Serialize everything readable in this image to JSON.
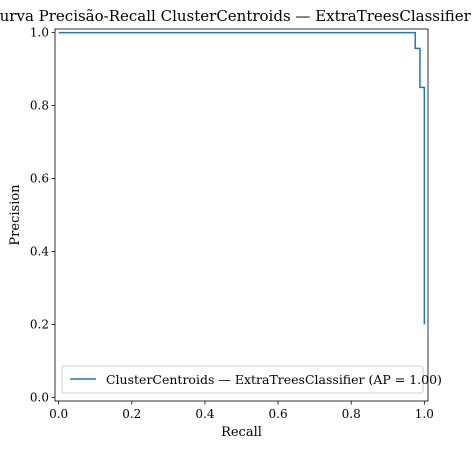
{
  "chart_data": {
    "type": "line",
    "title": "Curva Precisão-Recall ClusterCentroids — ExtraTreesClassifier",
    "xlabel": "Recall",
    "ylabel": "Precision",
    "xlim": [
      -0.01,
      1.01
    ],
    "ylim": [
      -0.01,
      1.01
    ],
    "xticks": [
      0.0,
      0.2,
      0.4,
      0.6,
      0.8,
      1.0
    ],
    "xtick_labels": [
      "0.0",
      "0.2",
      "0.4",
      "0.6",
      "0.8",
      "1.0"
    ],
    "yticks": [
      0.0,
      0.2,
      0.4,
      0.6,
      0.8,
      1.0
    ],
    "ytick_labels": [
      "0.0",
      "0.2",
      "0.4",
      "0.6",
      "0.8",
      "1.0"
    ],
    "grid": false,
    "legend_position": "lower-right",
    "series": [
      {
        "name": "ClusterCentroids — ExtraTreesClassifier (AP = 1.00)",
        "color": "#1f77b4",
        "drawstyle": "steps-post",
        "x": [
          0.0,
          0.975,
          0.975,
          0.988,
          0.988,
          1.0,
          1.0
        ],
        "y": [
          1.0,
          1.0,
          0.957,
          0.957,
          0.85,
          0.85,
          0.2
        ]
      }
    ]
  }
}
